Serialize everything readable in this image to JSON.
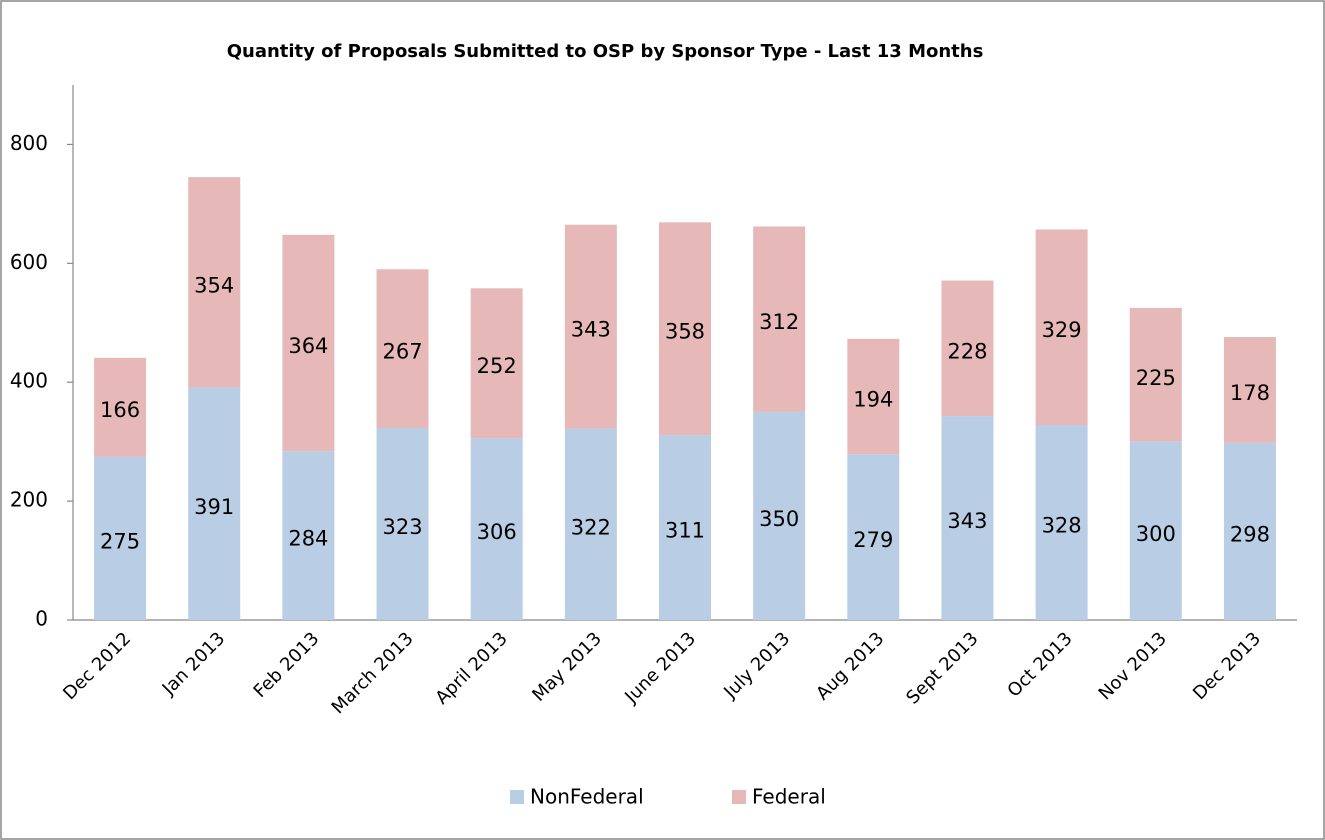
{
  "chart_data": {
    "type": "stacked-bar",
    "title": "Quantity of Proposals Submitted to OSP by Sponsor Type - Last 13 Months",
    "categories": [
      "Dec 2012",
      "Jan 2013",
      "Feb 2013",
      "March 2013",
      "April 2013",
      "May 2013",
      "June 2013",
      "July 2013",
      "Aug 2013",
      "Sept 2013",
      "Oct 2013",
      "Nov 2013",
      "Dec 2013"
    ],
    "series": [
      {
        "name": "NonFederal",
        "color": "#b9cde5",
        "values": [
          275,
          391,
          284,
          323,
          306,
          322,
          311,
          350,
          279,
          343,
          328,
          300,
          298
        ]
      },
      {
        "name": "Federal",
        "color": "#e6b9b8",
        "values": [
          166,
          354,
          364,
          267,
          252,
          343,
          358,
          312,
          194,
          228,
          329,
          225,
          178
        ]
      }
    ],
    "ylim": [
      0,
      900
    ],
    "yticks": [
      0,
      200,
      400,
      600,
      800
    ],
    "grid": false,
    "legend": "bottom"
  }
}
